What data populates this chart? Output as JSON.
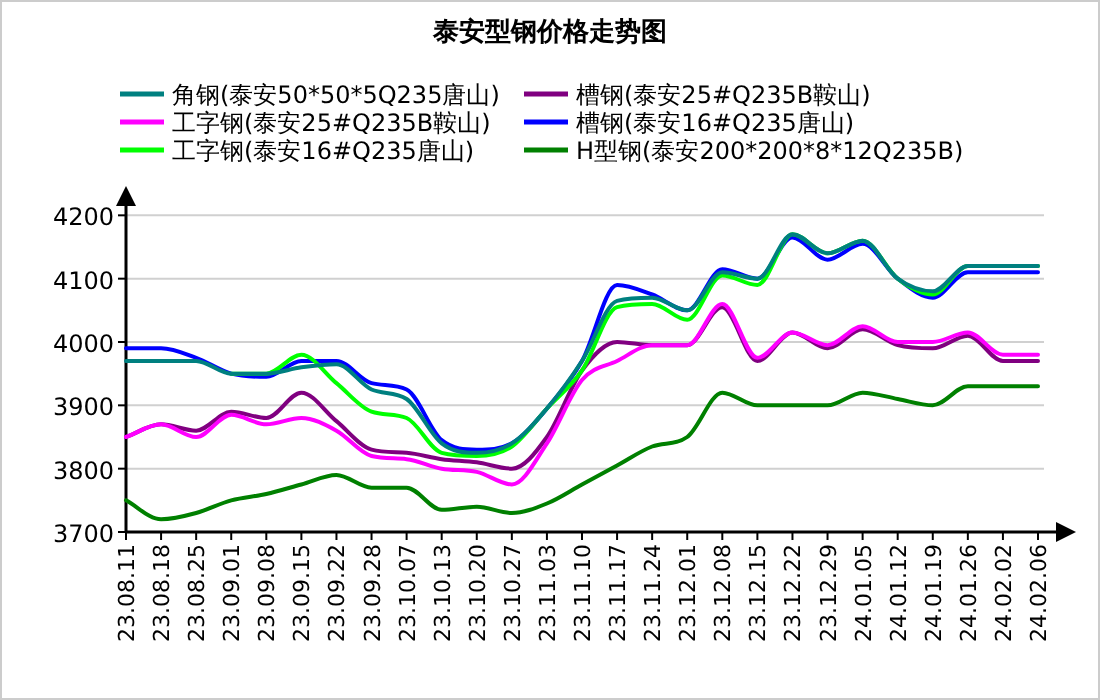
{
  "chart_data": {
    "type": "line",
    "title": "泰安型钢价格走势图",
    "categories": [
      "23.08.11",
      "23.08.18",
      "23.08.25",
      "23.09.01",
      "23.09.08",
      "23.09.15",
      "23.09.22",
      "23.09.28",
      "23.10.07",
      "23.10.13",
      "23.10.20",
      "23.10.27",
      "23.11.03",
      "23.11.10",
      "23.11.17",
      "23.11.24",
      "23.12.01",
      "23.12.08",
      "23.12.15",
      "23.12.22",
      "23.12.29",
      "24.01.05",
      "24.01.12",
      "24.01.19",
      "24.01.26",
      "24.02.02",
      "24.02.06"
    ],
    "series": [
      {
        "name": "角钢(泰安50*50*5Q235唐山)",
        "color": "#008080",
        "values": [
          3970,
          3970,
          3970,
          3950,
          3950,
          3960,
          3965,
          3925,
          3910,
          3840,
          3825,
          3840,
          3895,
          3970,
          4065,
          4070,
          4050,
          4110,
          4100,
          4170,
          4140,
          4160,
          4100,
          4080,
          4120,
          4120,
          4120
        ]
      },
      {
        "name": "工字钢(泰安25#Q235B鞍山)",
        "color": "#ff00ff",
        "values": [
          3850,
          3870,
          3850,
          3885,
          3870,
          3880,
          3860,
          3820,
          3815,
          3800,
          3795,
          3775,
          3840,
          3940,
          3970,
          3995,
          3995,
          4060,
          3975,
          4015,
          3995,
          4025,
          4000,
          4000,
          4015,
          3980,
          3980
        ]
      },
      {
        "name": "工字钢(泰安16#Q235唐山)",
        "color": "#00ff00",
        "values": [
          null,
          null,
          null,
          3950,
          3950,
          3980,
          3935,
          3890,
          3880,
          3825,
          3820,
          3835,
          3895,
          3955,
          4055,
          4060,
          4035,
          4105,
          4090,
          4170,
          4140,
          4160,
          4100,
          4075,
          4120,
          4120,
          4120
        ]
      },
      {
        "name": "槽钢(泰安25#Q235B鞍山)",
        "color": "#800080",
        "values": [
          3850,
          3870,
          3860,
          3890,
          3880,
          3920,
          3875,
          3830,
          3825,
          3815,
          3810,
          3800,
          3850,
          3955,
          4000,
          3995,
          3995,
          4055,
          3970,
          4015,
          3990,
          4020,
          3995,
          3990,
          4010,
          3970,
          3970
        ]
      },
      {
        "name": "槽钢(泰安16#Q235唐山)",
        "color": "#0000ff",
        "values": [
          3990,
          3990,
          3975,
          3950,
          3945,
          3970,
          3970,
          3935,
          3925,
          3845,
          3830,
          3840,
          3895,
          3970,
          4090,
          4075,
          4050,
          4115,
          4100,
          4165,
          4130,
          4155,
          4100,
          4070,
          4110,
          4110,
          4110
        ]
      },
      {
        "name": "H型钢(泰安200*200*8*12Q235B)",
        "color": "#008000",
        "values": [
          3750,
          3720,
          3730,
          3750,
          3760,
          3775,
          3790,
          3770,
          3770,
          3735,
          3740,
          3730,
          3745,
          3775,
          3805,
          3835,
          3850,
          3920,
          3900,
          3900,
          3900,
          3920,
          3910,
          3900,
          3930,
          3930,
          3930
        ]
      }
    ],
    "ylim": [
      3700,
      4240
    ],
    "yticks": [
      3700,
      3800,
      3900,
      4000,
      4100,
      4200
    ],
    "grid": "y",
    "legend": "top"
  }
}
